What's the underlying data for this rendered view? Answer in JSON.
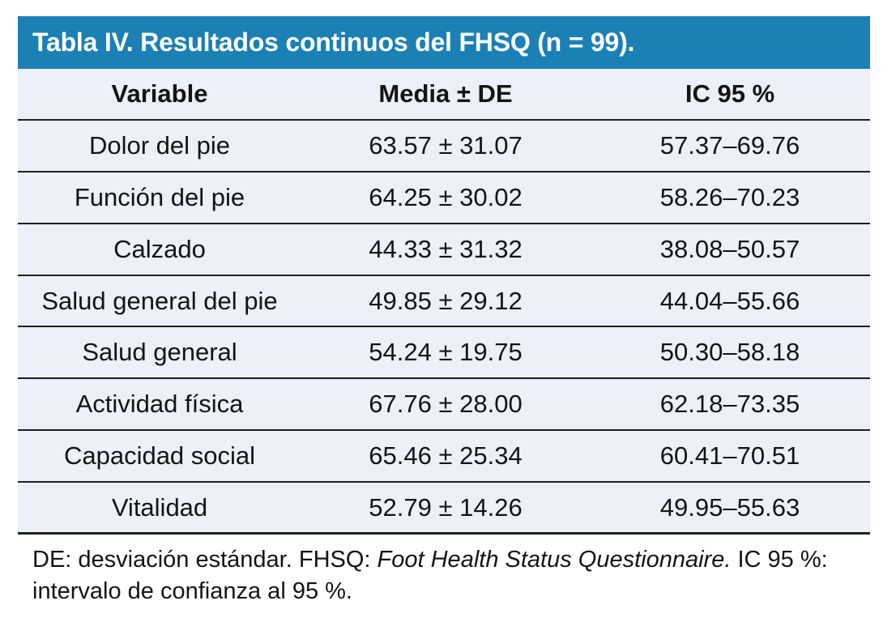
{
  "table": {
    "title": "Tabla IV. Resultados continuos del FHSQ (n = 99).",
    "columns": [
      "Variable",
      "Media ± DE",
      "IC 95 %"
    ],
    "rows": [
      {
        "variable": "Dolor del pie",
        "media_de": "63.57 ± 31.07",
        "ic95": "57.37–69.76"
      },
      {
        "variable": "Función del pie",
        "media_de": "64.25 ± 30.02",
        "ic95": "58.26–70.23"
      },
      {
        "variable": "Calzado",
        "media_de": "44.33 ± 31.32",
        "ic95": "38.08–50.57"
      },
      {
        "variable": "Salud general del pie",
        "media_de": "49.85 ± 29.12",
        "ic95": "44.04–55.66"
      },
      {
        "variable": "Salud general",
        "media_de": "54.24 ± 19.75",
        "ic95": "50.30–58.18"
      },
      {
        "variable": "Actividad física",
        "media_de": "67.76 ± 28.00",
        "ic95": "62.18–73.35"
      },
      {
        "variable": "Capacidad social",
        "media_de": "65.46 ± 25.34",
        "ic95": "60.41–70.51"
      },
      {
        "variable": "Vitalidad",
        "media_de": "52.79 ± 14.26",
        "ic95": "49.95–55.63"
      }
    ],
    "footnote": {
      "part1": "DE: desviación estándar. FHSQ: ",
      "italic": "Foot Health Status Questionnaire.",
      "part2": " IC 95 %: intervalo de confianza al 95 %."
    }
  },
  "colors": {
    "title_bar_bg": "#1b80b4",
    "title_text": "#ffffff",
    "row_bg": "#ecf0f8",
    "separator_line": "#1f1f1f",
    "body_text": "#141414"
  }
}
